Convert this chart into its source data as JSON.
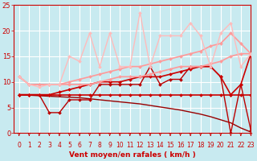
{
  "bg_color": "#c8eaf0",
  "grid_color": "#ffffff",
  "xlabel": "Vent moyen/en rafales ( km/h )",
  "xlabel_color": "#cc0000",
  "tick_color": "#cc0000",
  "x_min": -0.5,
  "x_max": 23,
  "y_min": 0,
  "y_max": 25,
  "yticks": [
    0,
    5,
    10,
    15,
    20,
    25
  ],
  "xticks": [
    0,
    1,
    2,
    3,
    4,
    5,
    6,
    7,
    8,
    9,
    10,
    11,
    12,
    13,
    14,
    15,
    16,
    17,
    18,
    19,
    20,
    21,
    22,
    23
  ],
  "lines": [
    {
      "x": [
        0,
        1,
        2,
        3,
        4,
        5,
        6,
        7,
        8,
        9,
        10,
        11,
        12,
        13,
        14,
        15,
        16,
        17,
        18,
        19,
        20,
        21,
        22,
        23
      ],
      "y": [
        7.5,
        7.5,
        7.5,
        7.5,
        7.5,
        7.5,
        7.5,
        7.5,
        7.5,
        7.5,
        7.5,
        7.5,
        7.5,
        7.5,
        7.5,
        7.5,
        7.5,
        7.5,
        7.5,
        7.5,
        7.5,
        7.5,
        7.5,
        7.5
      ],
      "color": "#cc0000",
      "lw": 1.2,
      "marker": "D",
      "ms": 2.0
    },
    {
      "x": [
        0,
        1,
        2,
        3,
        4,
        5,
        6,
        7,
        8,
        9,
        10,
        11,
        12,
        13,
        14,
        15,
        16,
        17,
        18,
        19,
        20,
        21,
        22,
        23
      ],
      "y": [
        7.5,
        7.4,
        7.3,
        7.2,
        7.1,
        7.0,
        6.9,
        6.7,
        6.5,
        6.3,
        6.1,
        5.9,
        5.7,
        5.4,
        5.1,
        4.8,
        4.5,
        4.1,
        3.7,
        3.2,
        2.6,
        2.0,
        1.0,
        0.2
      ],
      "color": "#990000",
      "lw": 1.0,
      "marker": null,
      "ms": 0
    },
    {
      "x": [
        0,
        1,
        2,
        3,
        4,
        5,
        6,
        7,
        8,
        9,
        10,
        11,
        12,
        13,
        14,
        15,
        16,
        17,
        18,
        19,
        20,
        21,
        22,
        23
      ],
      "y": [
        7.5,
        7.5,
        7.5,
        4.0,
        4.0,
        6.5,
        6.5,
        6.5,
        9.5,
        9.5,
        9.5,
        9.5,
        9.5,
        13.0,
        9.5,
        10.5,
        10.5,
        13.0,
        13.0,
        13.0,
        11.0,
        0.0,
        9.5,
        0.5
      ],
      "color": "#bb0000",
      "lw": 1.0,
      "marker": "D",
      "ms": 2.0
    },
    {
      "x": [
        0,
        1,
        2,
        3,
        4,
        5,
        6,
        7,
        8,
        9,
        10,
        11,
        12,
        13,
        14,
        15,
        16,
        17,
        18,
        19,
        20,
        21,
        22,
        23
      ],
      "y": [
        7.5,
        7.5,
        7.5,
        7.5,
        8.0,
        8.5,
        9.0,
        9.5,
        10.0,
        10.0,
        10.0,
        10.5,
        11.0,
        11.0,
        11.0,
        11.5,
        12.0,
        12.5,
        13.0,
        13.0,
        11.0,
        7.5,
        9.5,
        15.5
      ],
      "color": "#cc0000",
      "lw": 1.2,
      "marker": "D",
      "ms": 2.0
    },
    {
      "x": [
        0,
        1,
        2,
        3,
        4,
        5,
        6,
        7,
        8,
        9,
        10,
        11,
        12,
        13,
        14,
        15,
        16,
        17,
        18,
        19,
        20,
        21,
        22,
        23
      ],
      "y": [
        11.0,
        9.5,
        9.5,
        9.5,
        9.5,
        9.5,
        9.5,
        9.5,
        10.0,
        10.5,
        11.0,
        11.0,
        11.0,
        11.5,
        12.0,
        12.5,
        13.0,
        13.0,
        13.0,
        13.5,
        14.0,
        15.0,
        15.5,
        15.5
      ],
      "color": "#ff9999",
      "lw": 1.2,
      "marker": "D",
      "ms": 2.0
    },
    {
      "x": [
        0,
        1,
        2,
        3,
        4,
        5,
        6,
        7,
        8,
        9,
        10,
        11,
        12,
        13,
        14,
        15,
        16,
        17,
        18,
        19,
        20,
        21,
        22,
        23
      ],
      "y": [
        11.0,
        9.5,
        9.5,
        9.5,
        9.5,
        10.0,
        10.5,
        11.0,
        11.5,
        12.0,
        12.5,
        13.0,
        13.0,
        13.5,
        14.0,
        14.5,
        15.0,
        15.5,
        16.0,
        17.0,
        17.5,
        19.5,
        17.5,
        15.5
      ],
      "color": "#ff9999",
      "lw": 1.2,
      "marker": "D",
      "ms": 2.0
    },
    {
      "x": [
        0,
        1,
        2,
        3,
        4,
        5,
        6,
        7,
        8,
        9,
        10,
        11,
        12,
        13,
        14,
        15,
        16,
        17,
        18,
        19,
        20,
        21,
        22,
        23
      ],
      "y": [
        11.0,
        9.5,
        9.0,
        9.5,
        9.5,
        15.0,
        14.0,
        19.5,
        13.0,
        19.5,
        13.0,
        13.0,
        23.5,
        13.0,
        19.0,
        19.0,
        19.0,
        21.5,
        19.0,
        13.0,
        19.5,
        21.5,
        13.0,
        15.5
      ],
      "color": "#ffbbbb",
      "lw": 1.0,
      "marker": "D",
      "ms": 2.0
    }
  ]
}
